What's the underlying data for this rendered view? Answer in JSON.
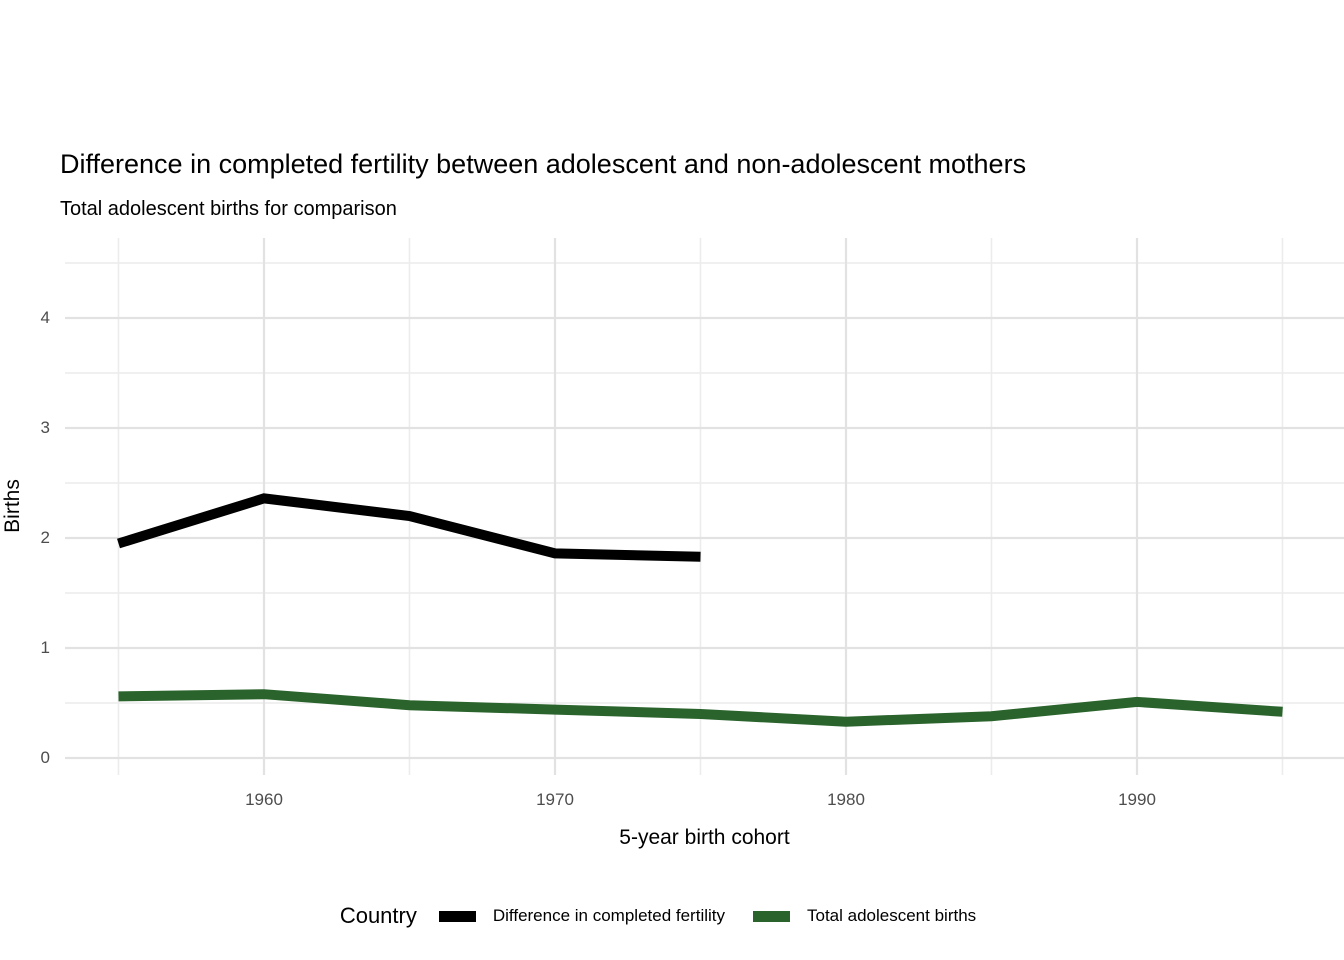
{
  "title": "Difference in completed fertility between adolescent and non-adolescent mothers",
  "subtitle": "Total adolescent births for comparison",
  "chart_data": {
    "type": "line",
    "title": "Difference in completed fertility between adolescent and non-adolescent mothers",
    "subtitle": "Total adolescent births for comparison",
    "xlabel": "5-year birth cohort",
    "ylabel": "Births",
    "x_ticks": [
      1960,
      1970,
      1980,
      1990
    ],
    "y_ticks": [
      0,
      1,
      2,
      3,
      4
    ],
    "xlim": [
      1953.2,
      1997.1
    ],
    "ylim": [
      -0.15,
      4.73
    ],
    "grid": true,
    "legend_position": "bottom",
    "legend_title": "Country",
    "series": [
      {
        "name": "Difference in completed fertility",
        "color": "#000000",
        "x": [
          1955,
          1960,
          1965,
          1970,
          1975
        ],
        "values": [
          1.95,
          2.36,
          2.2,
          1.86,
          1.83
        ]
      },
      {
        "name": "Total adolescent births",
        "color": "#2a632c",
        "x": [
          1955,
          1960,
          1965,
          1970,
          1975,
          1980,
          1985,
          1990,
          1995
        ],
        "values": [
          0.56,
          0.58,
          0.48,
          0.44,
          0.4,
          0.33,
          0.38,
          0.51,
          0.42
        ]
      }
    ]
  },
  "legend": {
    "title": "Country",
    "items": [
      {
        "label": "Difference in completed fertility",
        "color": "#000000"
      },
      {
        "label": "Total adolescent births",
        "color": "#2a632c"
      }
    ]
  },
  "colors": {
    "background": "#ffffff",
    "grid_major": "#e2e2e2",
    "grid_minor": "#ececec",
    "tick_label": "#4d4d4d",
    "series_black": "#000000",
    "series_green": "#2a632c"
  }
}
